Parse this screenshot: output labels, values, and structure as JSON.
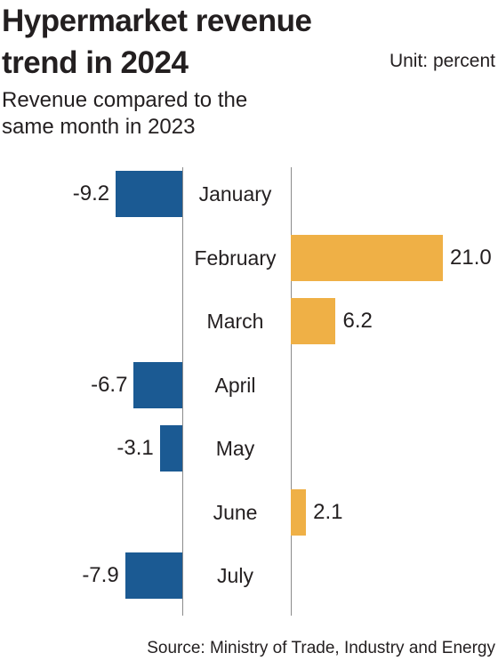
{
  "header": {
    "title": "Hypermarket revenue trend in 2024",
    "unit": "Unit: percent",
    "subtitle": "Revenue compared to the same month in 2023"
  },
  "chart_data": {
    "type": "bar",
    "orientation": "horizontal",
    "categories": [
      "January",
      "February",
      "March",
      "April",
      "May",
      "June",
      "July"
    ],
    "values": [
      -9.2,
      21.0,
      6.2,
      -6.7,
      -3.1,
      2.1,
      -7.9
    ],
    "value_labels": [
      "-9.2",
      "21.0",
      "6.2",
      "-6.7",
      "-3.1",
      "2.1",
      "-7.9"
    ],
    "title": "Hypermarket revenue trend in 2024",
    "ylabel": "Revenue compared to the same month in 2023",
    "unit": "percent",
    "colors": {
      "negative": "#1b5a93",
      "positive": "#efb046"
    },
    "grid": false,
    "legend": "none"
  },
  "footer": {
    "source": "Source: Ministry of Trade, Industry and Energy"
  }
}
